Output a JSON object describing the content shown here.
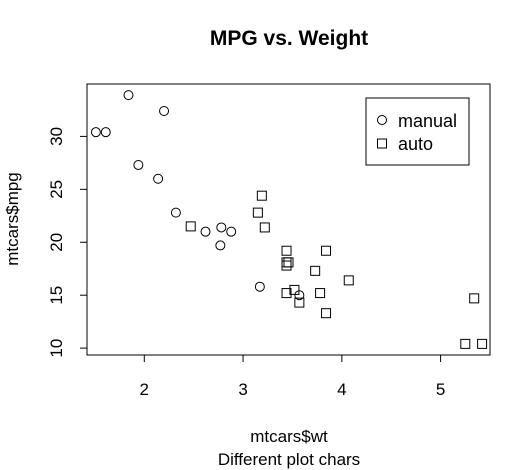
{
  "chart_data": {
    "type": "scatter",
    "title": "MPG vs. Weight",
    "xlabel": "mtcars$wt",
    "ylabel": "mtcars$mpg",
    "subtitle": "Different plot chars",
    "xlim": [
      1.42,
      5.5
    ],
    "ylim": [
      9.35,
      34.95
    ],
    "xticks": [
      2,
      3,
      4,
      5
    ],
    "yticks": [
      10,
      15,
      20,
      25,
      30
    ],
    "grid": false,
    "legend_position": "top-right",
    "series": [
      {
        "name": "manual",
        "marker": "circle",
        "points": [
          [
            1.51,
            30.4
          ],
          [
            1.61,
            30.4
          ],
          [
            1.84,
            33.9
          ],
          [
            1.94,
            27.3
          ],
          [
            2.14,
            26.0
          ],
          [
            2.2,
            32.4
          ],
          [
            2.32,
            22.8
          ],
          [
            2.62,
            21.0
          ],
          [
            2.77,
            19.7
          ],
          [
            2.78,
            21.4
          ],
          [
            2.88,
            21.0
          ],
          [
            3.17,
            15.8
          ],
          [
            3.57,
            15.0
          ]
        ]
      },
      {
        "name": "auto",
        "marker": "square",
        "points": [
          [
            2.47,
            21.5
          ],
          [
            3.15,
            22.8
          ],
          [
            3.19,
            24.4
          ],
          [
            3.22,
            21.4
          ],
          [
            3.44,
            18.1
          ],
          [
            3.44,
            17.8
          ],
          [
            3.44,
            19.2
          ],
          [
            3.44,
            15.2
          ],
          [
            3.46,
            18.1
          ],
          [
            3.52,
            15.5
          ],
          [
            3.57,
            14.3
          ],
          [
            3.73,
            17.3
          ],
          [
            3.78,
            15.2
          ],
          [
            3.84,
            19.2
          ],
          [
            3.84,
            13.3
          ],
          [
            4.07,
            16.4
          ],
          [
            5.25,
            10.4
          ],
          [
            5.34,
            14.7
          ],
          [
            5.42,
            10.4
          ]
        ]
      }
    ]
  }
}
